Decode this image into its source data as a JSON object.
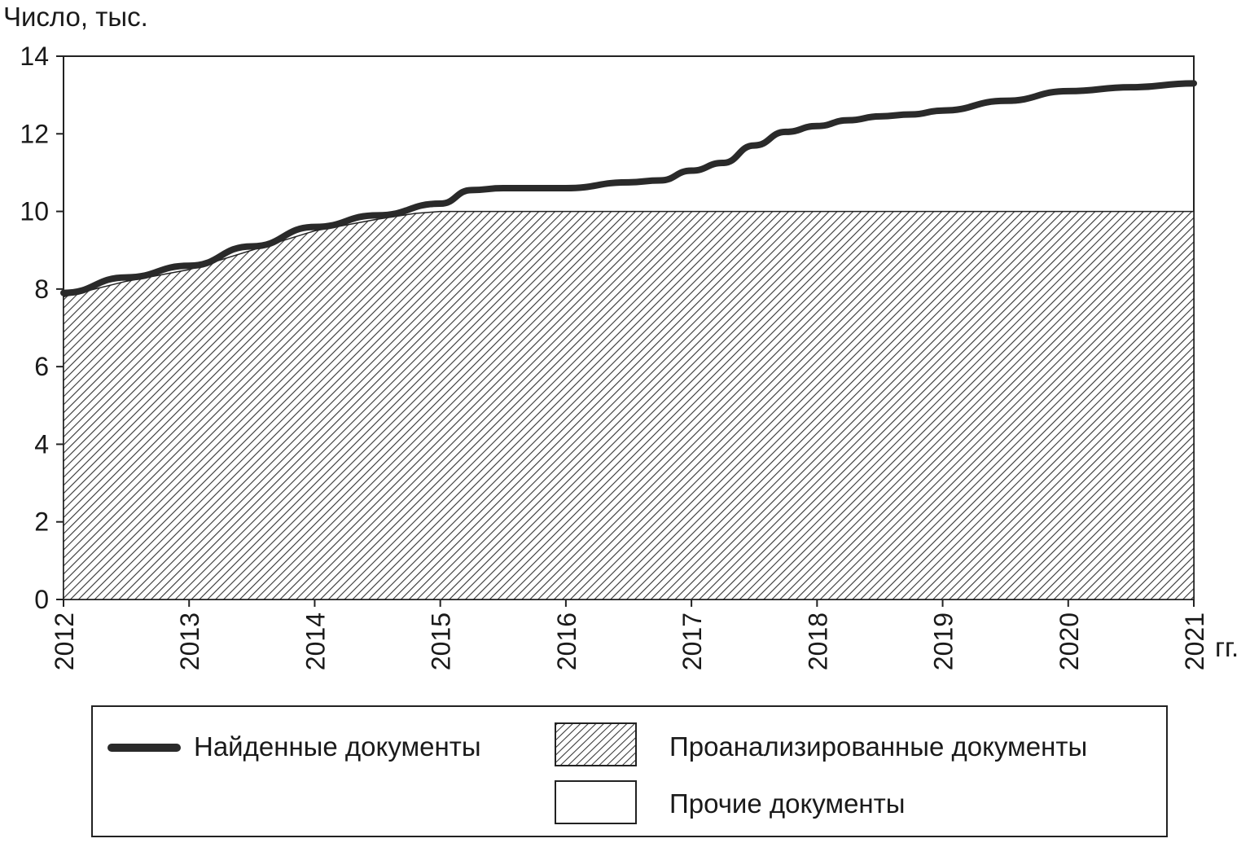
{
  "chart_data": {
    "type": "area",
    "ylabel": "Число, тыс.",
    "xlabel": "гг.",
    "xlim": [
      2012,
      2021
    ],
    "ylim": [
      0,
      14
    ],
    "yticks": [
      0,
      2,
      4,
      6,
      8,
      10,
      12,
      14
    ],
    "xticks": [
      "2012",
      "2013",
      "2014",
      "2015",
      "2016",
      "2017",
      "2018",
      "2019",
      "2020",
      "2021"
    ],
    "grid": false,
    "legend_position": "bottom",
    "series": [
      {
        "name": "Найденные документы",
        "kind": "line",
        "x": [
          2012,
          2012.5,
          2013,
          2013.5,
          2014,
          2014.5,
          2015,
          2015.25,
          2015.5,
          2016,
          2016.5,
          2016.75,
          2017,
          2017.25,
          2017.5,
          2017.75,
          2018,
          2018.25,
          2018.5,
          2018.75,
          2019,
          2019.5,
          2020,
          2020.5,
          2021
        ],
        "y": [
          7.9,
          8.3,
          8.6,
          9.1,
          9.6,
          9.9,
          10.2,
          10.55,
          10.6,
          10.6,
          10.75,
          10.8,
          11.05,
          11.25,
          11.7,
          12.05,
          12.2,
          12.35,
          12.45,
          12.5,
          12.6,
          12.85,
          13.1,
          13.2,
          13.3
        ]
      },
      {
        "name": "Проанализированные документы",
        "kind": "area-hatched",
        "x": [
          2012,
          2012.5,
          2013,
          2013.5,
          2014,
          2014.5,
          2014.8,
          2015,
          2021
        ],
        "y": [
          7.8,
          8.2,
          8.5,
          9.0,
          9.5,
          9.8,
          9.95,
          10.0,
          10.0
        ]
      },
      {
        "name": "Прочие документы",
        "kind": "area-blank"
      }
    ],
    "colors": {
      "line": "#2a2a2a",
      "hatch": "#333333",
      "axis": "#222222"
    }
  }
}
